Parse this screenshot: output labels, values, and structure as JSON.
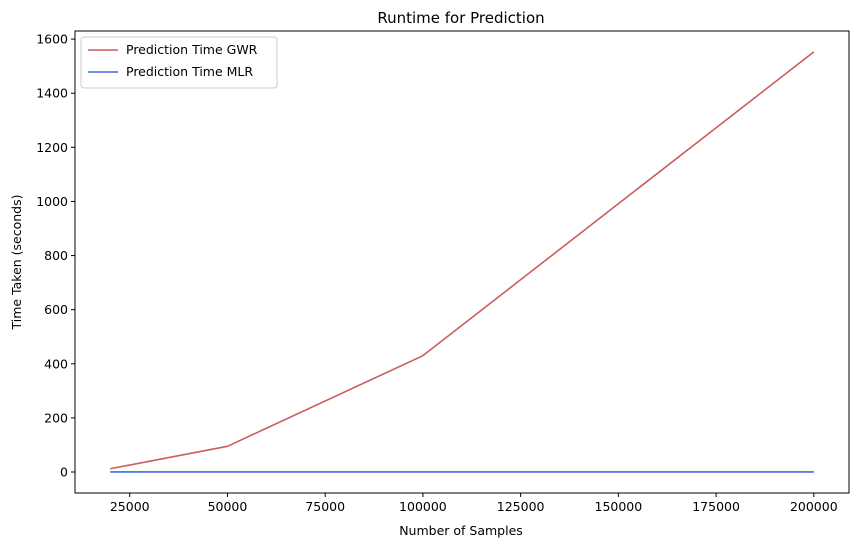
{
  "chart_data": {
    "type": "line",
    "title": "Runtime for Prediction",
    "xlabel": "Number of Samples",
    "ylabel": "Time Taken (seconds)",
    "x": [
      20000,
      50000,
      100000,
      200000
    ],
    "series": [
      {
        "name": "Prediction Time GWR",
        "color": "#cd5c5c",
        "values": [
          12,
          95,
          430,
          1553
        ]
      },
      {
        "name": "Prediction Time MLR",
        "color": "#4169e1",
        "values": [
          0.1,
          0.1,
          0.1,
          0.1
        ]
      }
    ],
    "xlim": [
      11000,
      209000
    ],
    "ylim": [
      -77.6,
      1630
    ],
    "xticks": [
      25000,
      50000,
      75000,
      100000,
      125000,
      150000,
      175000,
      200000
    ],
    "yticks": [
      0,
      200,
      400,
      600,
      800,
      1000,
      1200,
      1400,
      1600
    ],
    "grid": false,
    "legend": "top-left"
  }
}
